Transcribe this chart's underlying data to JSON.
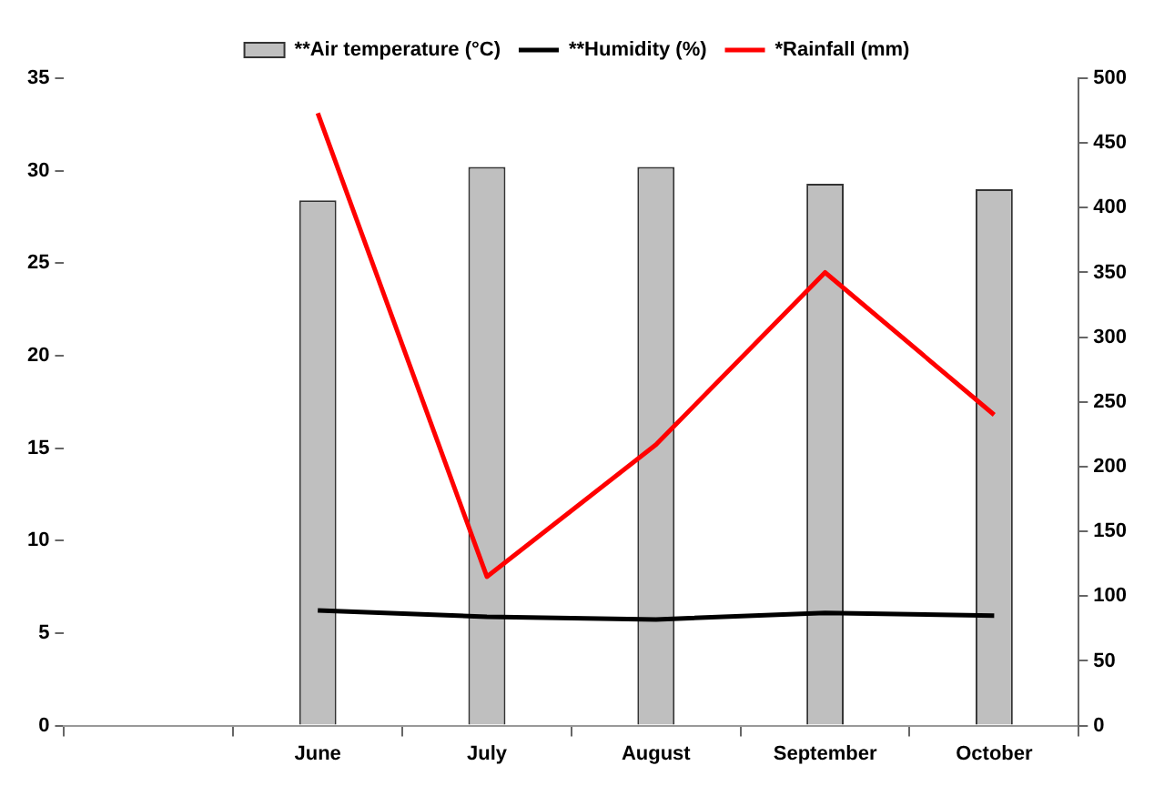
{
  "chart_data": {
    "type": "bar",
    "categories": [
      null,
      "June",
      "July",
      "August",
      "September",
      "October"
    ],
    "series": [
      {
        "name": "**Air temperature (°C)",
        "color": "#bfbfbf",
        "values": [
          null,
          28.4,
          30.2,
          30.2,
          29.3,
          29.0
        ]
      },
      {
        "name": "**Humidity (%)",
        "type": "line",
        "axis": "y2",
        "color": "#000000",
        "values": [
          null,
          89,
          84,
          82,
          87,
          85
        ]
      },
      {
        "name": "*Rainfall (mm)",
        "type": "line",
        "axis": "y2",
        "color": "#ff0000",
        "values": [
          null,
          473,
          115,
          217,
          350,
          240
        ]
      }
    ],
    "ylim": [
      0,
      35
    ],
    "yticks": [
      0,
      5,
      10,
      15,
      20,
      25,
      30,
      35
    ],
    "y2lim": [
      0,
      500
    ],
    "y2ticks": [
      0,
      50,
      100,
      150,
      200,
      250,
      300,
      350,
      400,
      450,
      500
    ],
    "grid": false,
    "legend": "top",
    "marker": "none",
    "line_style": "solid"
  }
}
